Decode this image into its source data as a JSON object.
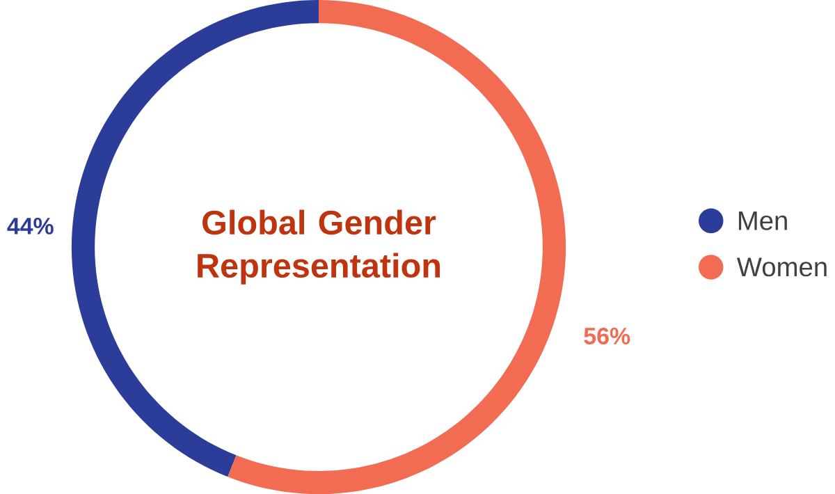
{
  "chart_data": {
    "type": "donut",
    "title": "Global Gender Representation",
    "categories": [
      "Men",
      "Women"
    ],
    "values": [
      44,
      56
    ],
    "colors": [
      "#2b3d99",
      "#f26b53"
    ],
    "value_labels": [
      "44%",
      "56%"
    ],
    "legend": "right"
  }
}
